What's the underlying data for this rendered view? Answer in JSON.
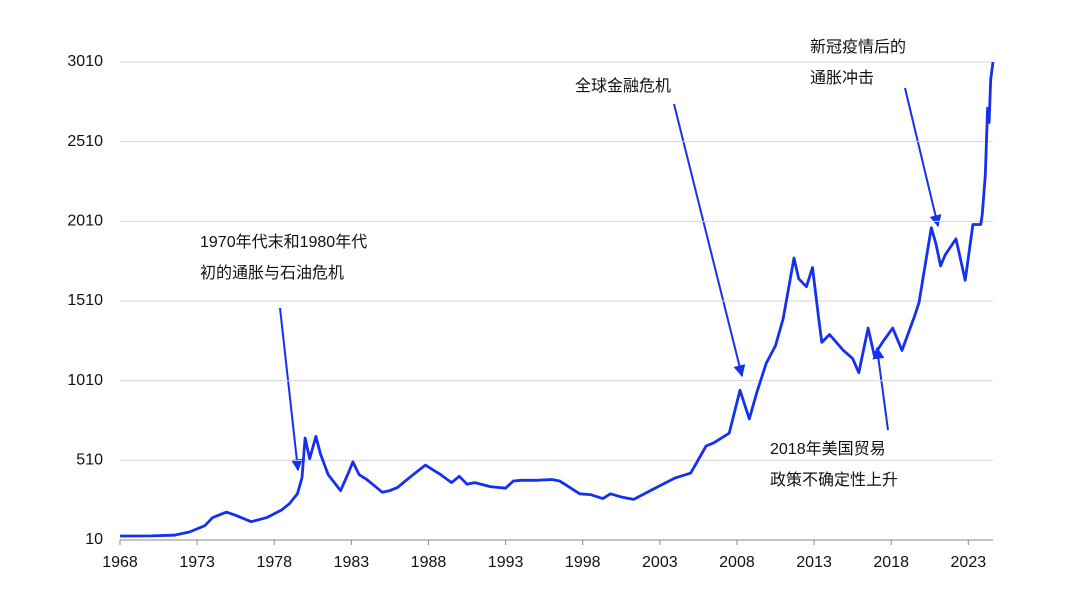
{
  "chart_data": {
    "type": "line",
    "color": "#1630f0",
    "grid": true,
    "x": [
      1968,
      1970,
      1971.5,
      1972.5,
      1973.5,
      1974,
      1974.9,
      1975.5,
      1976.5,
      1977.5,
      1978.5,
      1979,
      1979.5,
      1979.8,
      1980.0,
      1980.3,
      1980.7,
      1981,
      1981.5,
      1982.3,
      1982.8,
      1983.1,
      1983.5,
      1984,
      1984.5,
      1985,
      1985.5,
      1986,
      1986.5,
      1987,
      1987.8,
      1988.3,
      1988.8,
      1989.5,
      1990,
      1990.5,
      1991,
      1992,
      1993,
      1993.5,
      1994,
      1995,
      1996,
      1996.5,
      1997,
      1997.8,
      1998.5,
      1999.3,
      1999.8,
      2000.5,
      2001.3,
      2002,
      2003,
      2004,
      2005,
      2006,
      2006.5,
      2007.5,
      2008.2,
      2008.8,
      2009.3,
      2009.9,
      2010.5,
      2011,
      2011.7,
      2012,
      2012.5,
      2012.9,
      2013.3,
      2013.5,
      2014,
      2014.9,
      2015.5,
      2015.9,
      2016.5,
      2016.9,
      2017.5,
      2018.1,
      2018.7,
      2019.5,
      2019.8,
      2020.6,
      2020.9,
      2021.2,
      2021.5,
      2022.2,
      2022.8,
      2023.3,
      2023.8,
      2023.9,
      2024.1,
      2024.25,
      2024.35,
      2024.45,
      2024.6
    ],
    "values": [
      35,
      36,
      40,
      60,
      100,
      150,
      185,
      165,
      125,
      150,
      200,
      240,
      300,
      400,
      650,
      520,
      660,
      550,
      420,
      320,
      430,
      500,
      420,
      390,
      350,
      310,
      320,
      340,
      380,
      420,
      480,
      450,
      420,
      370,
      410,
      360,
      370,
      345,
      335,
      380,
      385,
      385,
      390,
      380,
      350,
      300,
      295,
      270,
      300,
      280,
      265,
      300,
      350,
      400,
      430,
      600,
      620,
      680,
      950,
      770,
      940,
      1120,
      1230,
      1400,
      1780,
      1650,
      1600,
      1720,
      1400,
      1250,
      1300,
      1200,
      1150,
      1060,
      1340,
      1170,
      1260,
      1340,
      1200,
      1410,
      1500,
      1970,
      1870,
      1730,
      1800,
      1900,
      1640,
      1990,
      1990,
      2050,
      2300,
      2720,
      2630,
      2900,
      3010
    ],
    "xlim": [
      1968,
      2024.6
    ],
    "xticks": [
      1968,
      1973,
      1978,
      1983,
      1988,
      1993,
      1998,
      2003,
      2008,
      2013,
      2018,
      2023
    ],
    "ylim": [
      10,
      3010
    ],
    "yticks": [
      10,
      510,
      1010,
      1510,
      2010,
      2510,
      3010
    ],
    "annotations": [
      {
        "lines": [
          "1970年代末和1980年代",
          "初的通胀与石油危机"
        ]
      },
      {
        "lines": [
          "全球金融危机"
        ]
      },
      {
        "lines": [
          "新冠疫情后的",
          "通胀冲击"
        ]
      },
      {
        "lines": [
          "2018年美国贸易",
          "政策不确定性上升"
        ]
      }
    ]
  }
}
